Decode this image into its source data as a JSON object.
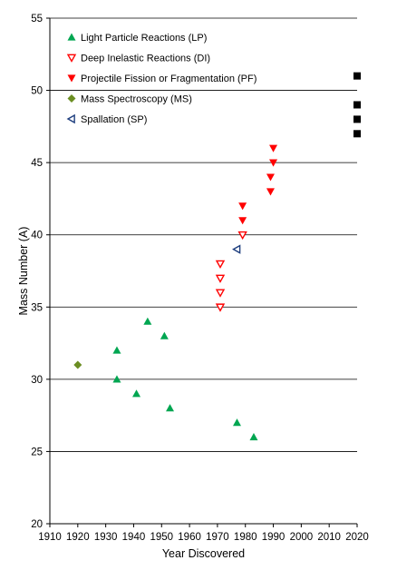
{
  "chart_data": {
    "type": "scatter",
    "xlabel": "Year Discovered",
    "ylabel": "Mass Number (A)",
    "xlim": [
      1910,
      2020
    ],
    "ylim": [
      20,
      55
    ],
    "x_ticks": [
      "1910",
      "1920",
      "1930",
      "1940",
      "1950",
      "1960",
      "1970",
      "1980",
      "1990",
      "2000",
      "2010",
      "2020"
    ],
    "y_ticks": [
      "20",
      "25",
      "30",
      "35",
      "40",
      "45",
      "50",
      "55"
    ],
    "grid": "horizontal",
    "legend_position": "top-left",
    "series": [
      {
        "name": "Light Particle Reactions (LP)",
        "marker": "triangle-up",
        "color": "#00a651",
        "points": [
          [
            1934,
            32
          ],
          [
            1934,
            30
          ],
          [
            1941,
            29
          ],
          [
            1945,
            34
          ],
          [
            1951,
            33
          ],
          [
            1953,
            28
          ],
          [
            1977,
            27
          ],
          [
            1983,
            26
          ]
        ]
      },
      {
        "name": "Deep Inelastic Reactions (DI)",
        "marker": "triangle-down-open",
        "color": "#ff0000",
        "points": [
          [
            1971,
            38
          ],
          [
            1971,
            37
          ],
          [
            1971,
            36
          ],
          [
            1971,
            35
          ],
          [
            1979,
            40
          ]
        ]
      },
      {
        "name": "Projectile Fission or Fragmentation (PF)",
        "marker": "triangle-down",
        "color": "#ff0000",
        "points": [
          [
            1979,
            42
          ],
          [
            1979,
            41
          ],
          [
            1989,
            44
          ],
          [
            1989,
            43
          ],
          [
            1990,
            46
          ],
          [
            1990,
            45
          ]
        ]
      },
      {
        "name": "Mass Spectroscopy (MS)",
        "marker": "diamond",
        "color": "#6b8e23",
        "points": [
          [
            1920,
            31
          ]
        ]
      },
      {
        "name": "Spallation (SP)",
        "marker": "triangle-left-open",
        "color": "#1f3f7f",
        "points": [
          [
            1977,
            39
          ]
        ]
      },
      {
        "marker": "square",
        "color": "#000000",
        "points": [
          [
            2020,
            51
          ],
          [
            2020,
            49
          ],
          [
            2020,
            48
          ],
          [
            2020,
            47
          ]
        ]
      }
    ]
  }
}
